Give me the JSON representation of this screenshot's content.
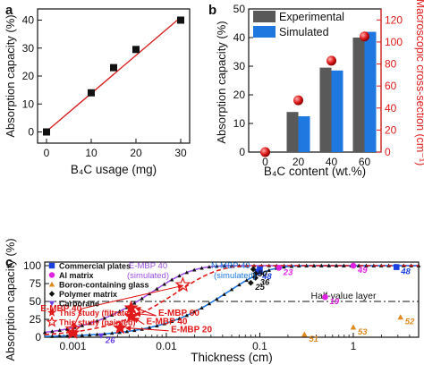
{
  "chart_data": [
    {
      "panel": "a",
      "type": "scatter",
      "xlabel": "B₄C usage (mg)",
      "ylabel": "Absorption capacity (%)",
      "xlim": [
        -2,
        32
      ],
      "ylim": [
        -4,
        44
      ],
      "xticks": [
        "0",
        "10",
        "20",
        "30"
      ],
      "yticks": [
        "0",
        "10",
        "20",
        "30",
        "40"
      ],
      "points": [
        {
          "x": 0,
          "y": 0
        },
        {
          "x": 10,
          "y": 14
        },
        {
          "x": 15,
          "y": 23
        },
        {
          "x": 20,
          "y": 29.5
        },
        {
          "x": 30,
          "y": 40
        }
      ],
      "fit_line": {
        "x": [
          0,
          30
        ],
        "y": [
          0.2,
          41
        ],
        "color": "#d62020"
      },
      "marker_color": "#111111"
    },
    {
      "panel": "b",
      "type": "bar",
      "xlabel": "B₄C content (wt.%)",
      "ylabel": "Absorption capacity (%)",
      "y2label": "Macroscopic cross-section (cm⁻¹)",
      "categories": [
        "0",
        "20",
        "40",
        "60"
      ],
      "ylim": [
        0,
        50
      ],
      "yticks": [
        "0",
        "10",
        "20",
        "30",
        "40",
        "50"
      ],
      "y2lim": [
        0,
        130
      ],
      "y2ticks": [
        "0",
        "20",
        "40",
        "60",
        "80",
        "100",
        "120"
      ],
      "series": [
        {
          "name": "Experimental",
          "values": [
            0,
            14,
            29.5,
            40
          ],
          "color": "#595959"
        },
        {
          "name": "Simulated",
          "values": [
            0,
            12.5,
            28.5,
            42
          ],
          "color": "#1f78e0"
        }
      ],
      "cross_section": {
        "values": [
          0,
          47,
          83,
          105
        ],
        "color": "#e01a1a"
      },
      "legend": "top-left"
    },
    {
      "panel": "c",
      "type": "scatter",
      "xlabel": "Thickness (cm)",
      "ylabel": "Absorption capacity (%)",
      "xscale": "log",
      "xlim": [
        0.0005,
        5
      ],
      "ylim": [
        0,
        105
      ],
      "xticks": [
        "0.001",
        "0.01",
        "0.1",
        "1"
      ],
      "yticks": [
        "0",
        "25",
        "50",
        "75",
        "100"
      ],
      "half_value": {
        "y": 50,
        "label": "Half-value layer"
      },
      "legend": [
        {
          "label": "Commercial plates",
          "marker": "square",
          "color": "#1a3fe0"
        },
        {
          "label": "Al matrix",
          "marker": "circle",
          "color": "#e020e0"
        },
        {
          "label": "Boron-containing glass",
          "marker": "triangle",
          "color": "#e08a20"
        },
        {
          "label": "Polymer matrix",
          "marker": "diamond",
          "color": "#111111"
        },
        {
          "label": "Carborane",
          "marker": "triangle-down",
          "color": "#6a3fe0"
        },
        {
          "label": "This study (filtrated)",
          "marker": "star",
          "color": "#e01a1a"
        },
        {
          "label": "This study (painted)",
          "marker": "star-open",
          "color": "#e01a1a"
        }
      ],
      "literature": [
        {
          "x": 0.095,
          "y": 91.5,
          "type": "commercial",
          "ref": "48"
        },
        {
          "x": 0.1,
          "y": 95,
          "type": "commercial",
          "ref": ""
        },
        {
          "x": 2.9,
          "y": 98,
          "type": "commercial",
          "ref": "48"
        },
        {
          "x": 0.16,
          "y": 97,
          "type": "al",
          "ref": "23"
        },
        {
          "x": 1.0,
          "y": 100,
          "type": "al",
          "ref": "49"
        },
        {
          "x": 0.5,
          "y": 56,
          "type": "al",
          "ref": "19"
        },
        {
          "x": 0.3,
          "y": 4,
          "type": "glass",
          "ref": "51"
        },
        {
          "x": 1.0,
          "y": 14,
          "type": "glass",
          "ref": "53"
        },
        {
          "x": 3.2,
          "y": 28,
          "type": "glass",
          "ref": "52"
        },
        {
          "x": 0.085,
          "y": 95,
          "type": "polymer",
          "ref": "50"
        },
        {
          "x": 0.09,
          "y": 89,
          "type": "polymer",
          "ref": ""
        },
        {
          "x": 0.09,
          "y": 83,
          "type": "polymer",
          "ref": "36"
        },
        {
          "x": 0.08,
          "y": 76,
          "type": "polymer",
          "ref": "25"
        },
        {
          "x": 0.002,
          "y": 2,
          "type": "carborane",
          "ref": "26"
        }
      ],
      "this_study_filtrated": [
        {
          "x": 0.001,
          "y": 6
        },
        {
          "x": 0.0032,
          "y": 13
        },
        {
          "x": 0.0042,
          "y": 29
        },
        {
          "x": 0.0042,
          "y": 41
        }
      ],
      "this_study_painted": [
        {
          "x": 0.001,
          "y": 11
        },
        {
          "x": 0.015,
          "y": 73
        }
      ],
      "curves": [
        {
          "label": "E-MBP 40 (simulated)",
          "color": "#9c4fe0",
          "k": 142
        },
        {
          "label": "N-MBP 40 (simulated)",
          "color": "#1f78e0",
          "k": 22
        }
      ],
      "dashed_fit": {
        "color": "#e01a1a",
        "k": 76
      },
      "annotations": [
        {
          "text": "E-MBP 40",
          "color": "#e01a1a",
          "x": 0.00045,
          "y": 36
        },
        {
          "text": "E-MBP 60",
          "color": "#e01a1a",
          "x": 0.0082,
          "y": 30
        },
        {
          "text": "E-MBP 40",
          "color": "#e01a1a",
          "x": 0.0061,
          "y": 18
        },
        {
          "text": "E-MBP 20",
          "color": "#e01a1a",
          "x": 0.0112,
          "y": 7
        }
      ]
    }
  ],
  "labels": {
    "panel_a": "a",
    "panel_b": "b",
    "panel_c": "c",
    "legend_b_experimental": "Experimental",
    "legend_b_simulated": "Simulated",
    "emb_sim_line1": "E-MBP 40",
    "emb_sim_line2": "(simulated)",
    "nmbp_sim_line1": "N-MBP 40",
    "nmbp_sim_line2": "(simulated)"
  }
}
